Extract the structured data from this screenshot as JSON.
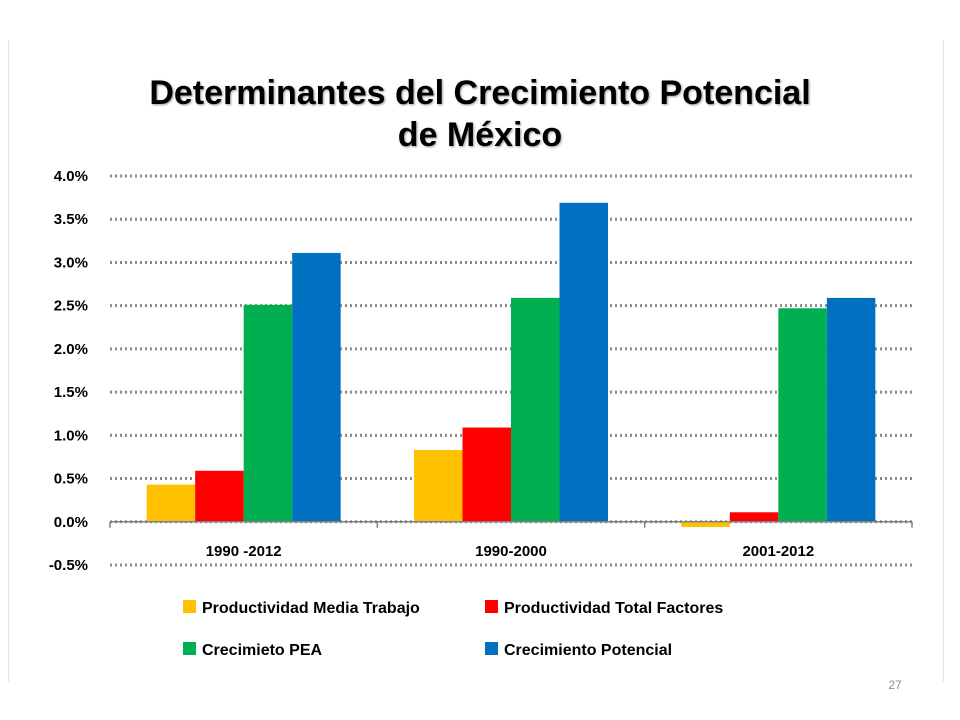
{
  "chart_data": {
    "type": "bar",
    "title_line1": "Determinantes del Crecimiento Potencial",
    "title_line2": "de México",
    "categories": [
      "1990 -2012",
      "1990-2000",
      "2001-2012"
    ],
    "series": [
      {
        "name": "Productividad Media Trabajo",
        "color": "#FFC000",
        "values": [
          0.43,
          0.83,
          -0.06
        ]
      },
      {
        "name": "Productividad Total Factores",
        "color": "#FF0000",
        "values": [
          0.59,
          1.09,
          0.11
        ]
      },
      {
        "name": "Crecimieto PEA",
        "color": "#00B050",
        "values": [
          2.51,
          2.59,
          2.47
        ]
      },
      {
        "name": "Crecimiento Potencial",
        "color": "#0070C0",
        "values": [
          3.11,
          3.69,
          2.59
        ]
      }
    ],
    "ylim": [
      -0.5,
      4.0
    ],
    "yticks": [
      4.0,
      3.5,
      3.0,
      2.5,
      2.0,
      1.5,
      1.0,
      0.5,
      0.0,
      -0.5
    ],
    "ytick_labels": [
      "4.0%",
      "3.5%",
      "3.0%",
      "2.5%",
      "2.0%",
      "1.5%",
      "1.0%",
      "0.5%",
      "0.0%",
      "-0.5%"
    ],
    "grid": "dotted horizontal",
    "legend_position": "bottom",
    "xlabel": "",
    "ylabel": ""
  },
  "page_number": "27"
}
